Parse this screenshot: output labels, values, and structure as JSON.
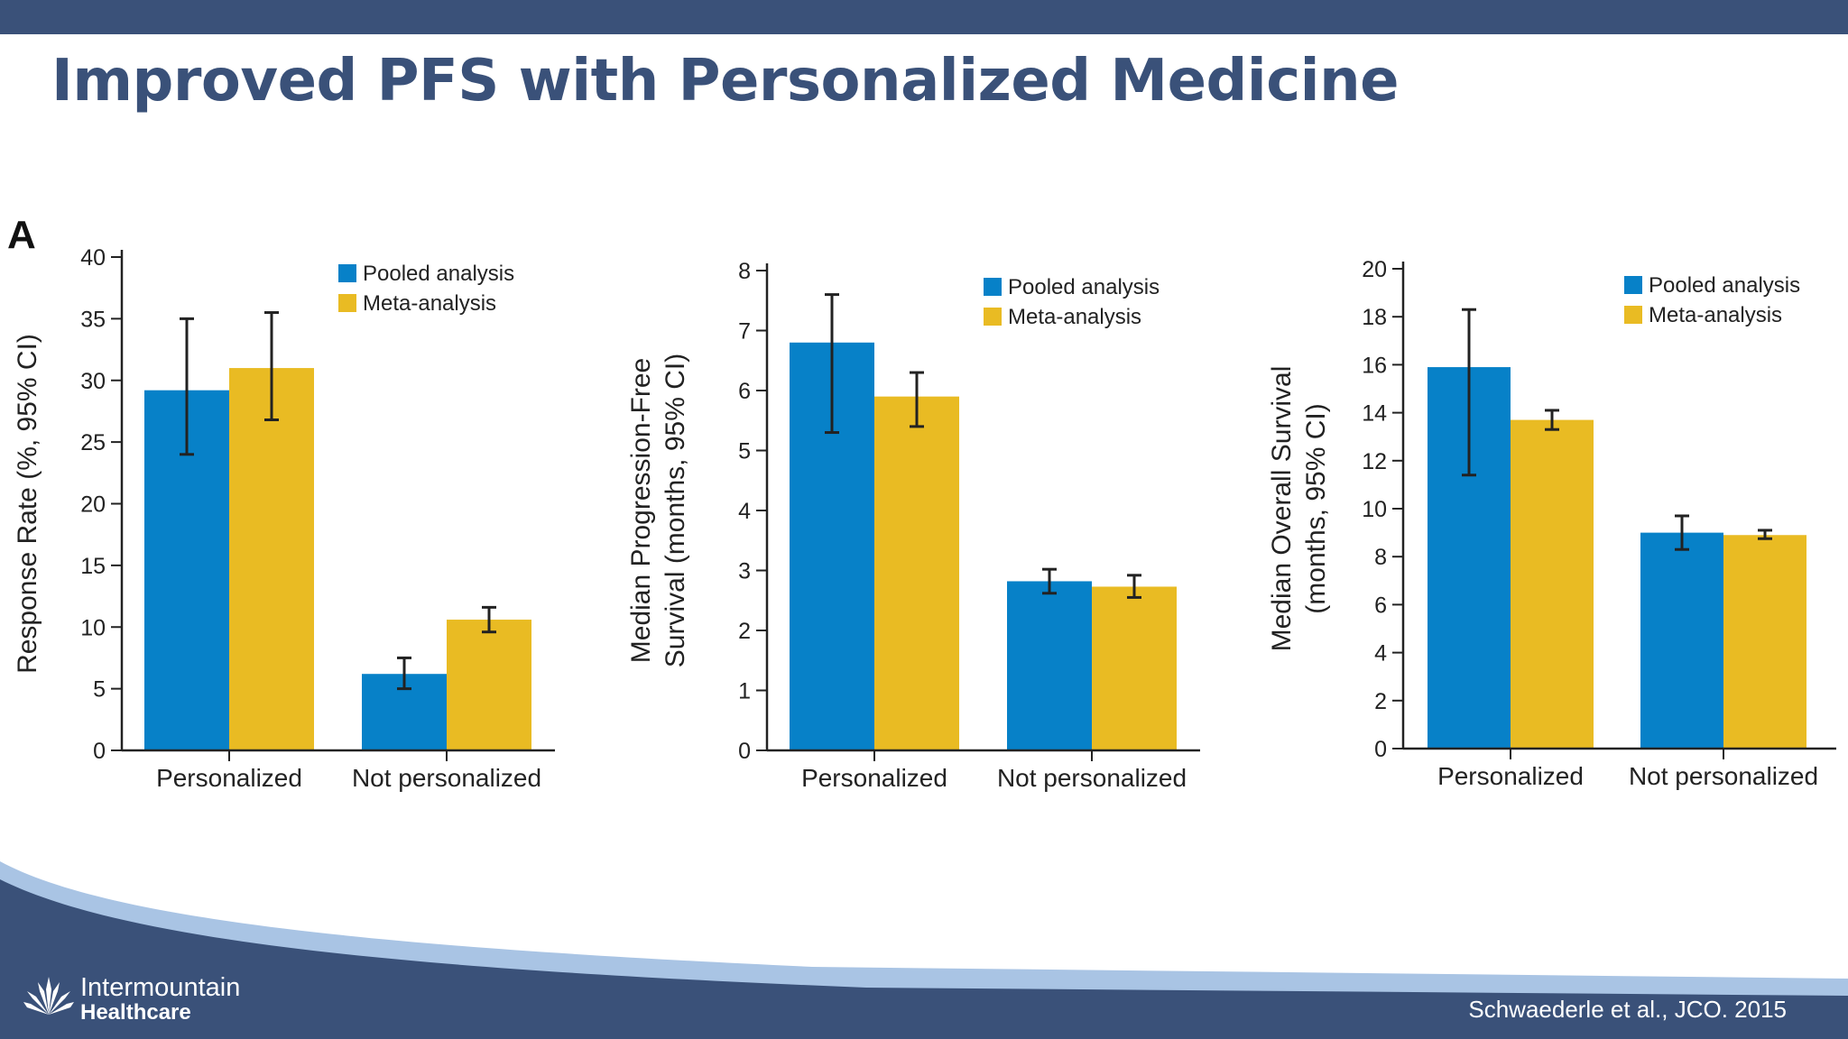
{
  "slide": {
    "title": "Improved PFS with Personalized Medicine",
    "panel_label": "A",
    "citation": "Schwaederle et al., JCO. 2015",
    "logo": {
      "name": "Intermountain",
      "subtitle": "Healthcare"
    }
  },
  "colors": {
    "header_bar": "#3a5179",
    "title": "#3a5179",
    "footer_dark": "#3a5179",
    "footer_light": "#a9c4e4",
    "pooled": "#0781c8",
    "meta": "#e9bb23"
  },
  "chart_data": [
    {
      "type": "bar",
      "categories": [
        "Personalized",
        "Not personalized"
      ],
      "ylabel": "Response Rate (%, 95% CI)",
      "ylim": [
        0,
        40
      ],
      "yticks": [
        0,
        5,
        10,
        15,
        20,
        25,
        30,
        35,
        40
      ],
      "series": [
        {
          "name": "Pooled analysis",
          "color": "#0781c8",
          "values": [
            29.2,
            6.2
          ],
          "ci_low": [
            24.0,
            5.0
          ],
          "ci_high": [
            35.0,
            7.5
          ]
        },
        {
          "name": "Meta-analysis",
          "color": "#e9bb23",
          "values": [
            31.0,
            10.6
          ],
          "ci_low": [
            26.8,
            9.6
          ],
          "ci_high": [
            35.5,
            11.6
          ]
        }
      ],
      "legend": "top-right",
      "error_bars": true
    },
    {
      "type": "bar",
      "categories": [
        "Personalized",
        "Not personalized"
      ],
      "ylabel": [
        "Median Progression-Free",
        "Survival (months, 95% CI)"
      ],
      "ylim": [
        0,
        8
      ],
      "yticks": [
        0,
        1,
        2,
        3,
        4,
        5,
        6,
        7,
        8
      ],
      "series": [
        {
          "name": "Pooled analysis",
          "color": "#0781c8",
          "values": [
            6.8,
            2.82
          ],
          "ci_low": [
            5.3,
            2.62
          ],
          "ci_high": [
            7.6,
            3.02
          ]
        },
        {
          "name": "Meta-analysis",
          "color": "#e9bb23",
          "values": [
            5.9,
            2.73
          ],
          "ci_low": [
            5.4,
            2.55
          ],
          "ci_high": [
            6.3,
            2.92
          ]
        }
      ],
      "legend": "top-right",
      "error_bars": true
    },
    {
      "type": "bar",
      "categories": [
        "Personalized",
        "Not personalized"
      ],
      "ylabel": [
        "Median Overall Survival",
        "(months, 95% CI)"
      ],
      "ylim": [
        0,
        20
      ],
      "yticks": [
        0,
        2,
        4,
        6,
        8,
        10,
        12,
        14,
        16,
        18,
        20
      ],
      "series": [
        {
          "name": "Pooled analysis",
          "color": "#0781c8",
          "values": [
            15.9,
            9.0
          ],
          "ci_low": [
            11.4,
            8.3
          ],
          "ci_high": [
            18.3,
            9.7
          ]
        },
        {
          "name": "Meta-analysis",
          "color": "#e9bb23",
          "values": [
            13.7,
            8.9
          ],
          "ci_low": [
            13.3,
            8.75
          ],
          "ci_high": [
            14.1,
            9.1
          ]
        }
      ],
      "legend": "top-right",
      "error_bars": true
    }
  ]
}
